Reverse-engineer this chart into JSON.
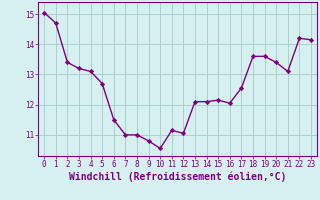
{
  "x": [
    0,
    1,
    2,
    3,
    4,
    5,
    6,
    7,
    8,
    9,
    10,
    11,
    12,
    13,
    14,
    15,
    16,
    17,
    18,
    19,
    20,
    21,
    22,
    23
  ],
  "y": [
    15.05,
    14.7,
    13.4,
    13.2,
    13.1,
    12.7,
    11.5,
    11.0,
    11.0,
    10.8,
    10.55,
    11.15,
    11.05,
    12.1,
    12.1,
    12.15,
    12.05,
    12.55,
    13.6,
    13.6,
    13.4,
    13.1,
    14.2,
    14.15
  ],
  "line_color": "#800080",
  "marker": "D",
  "marker_size": 2.2,
  "bg_color": "#d6f0f0",
  "grid_color": "#aacfcf",
  "xlabel": "Windchill (Refroidissement éolien,°C)",
  "ylabel": "",
  "ylim": [
    10.3,
    15.4
  ],
  "xlim": [
    -0.5,
    23.5
  ],
  "yticks": [
    11,
    12,
    13,
    14,
    15
  ],
  "xticks": [
    0,
    1,
    2,
    3,
    4,
    5,
    6,
    7,
    8,
    9,
    10,
    11,
    12,
    13,
    14,
    15,
    16,
    17,
    18,
    19,
    20,
    21,
    22,
    23
  ],
  "tick_fontsize": 5.5,
  "xlabel_fontsize": 7.0,
  "line_width": 1.0
}
